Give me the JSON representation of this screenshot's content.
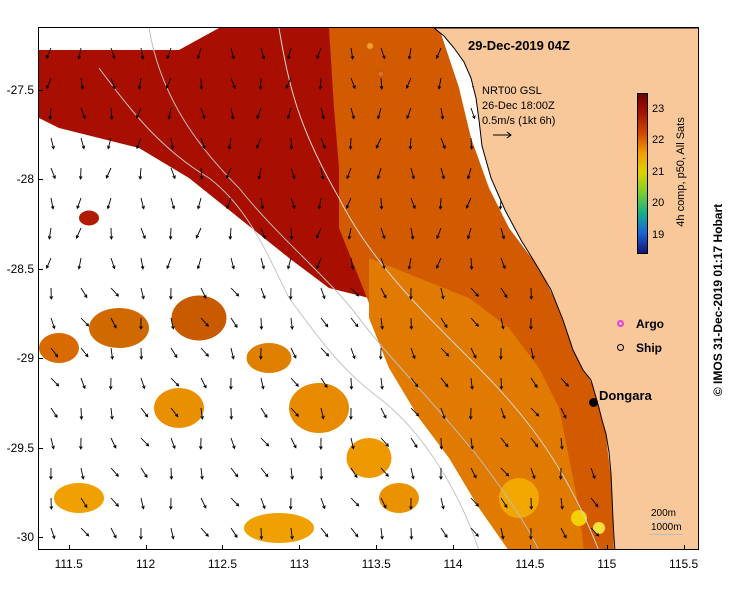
{
  "map": {
    "title_date": "29-Dec-2019 04Z",
    "product_lines": [
      "NRT00 GSL",
      "26-Dec 18:00Z",
      "0.5m/s (1kt 6h)"
    ],
    "x_ticks": [
      "111.5",
      "112",
      "112.5",
      "113",
      "113.5",
      "114",
      "114.5",
      "115",
      "115.5"
    ],
    "x_tick_values": [
      111.5,
      112,
      112.5,
      113,
      113.5,
      114,
      114.5,
      115,
      115.5
    ],
    "y_ticks": [
      "-27.5",
      "-28",
      "-28.5",
      "-29",
      "-29.5",
      "-30"
    ],
    "y_tick_values": [
      -27.5,
      -28,
      -28.5,
      -29,
      -29.5,
      -30
    ],
    "lon_range": [
      111.3,
      115.6
    ],
    "lat_range": [
      -27.15,
      -30.07
    ],
    "colorbar": {
      "title": "4h comp, p50, All Sats",
      "labels": [
        "23",
        "22",
        "21",
        "20",
        "19"
      ],
      "values": [
        23,
        22,
        21,
        20,
        19
      ],
      "range": [
        18.4,
        23.5
      ],
      "colors": [
        "#6e0000",
        "#a81500",
        "#d04a00",
        "#f3a000",
        "#d9d200",
        "#7acc30",
        "#10b08c",
        "#1a64d6",
        "#16147a"
      ]
    },
    "symbols": {
      "argo_label": "Argo",
      "ship_label": "Ship",
      "argo_color": "#e040e0"
    },
    "place": {
      "name": "Dongara",
      "lon": 114.93,
      "lat": -29.25
    },
    "scale": {
      "label_200": "200m",
      "label_1000": "1000m"
    },
    "credit": "© IMOS 31-Dec-2019 01:17 Hobart",
    "colors": {
      "land": "#f8c89a",
      "coast": "#000000",
      "bathy": "#c8c8c8"
    }
  }
}
